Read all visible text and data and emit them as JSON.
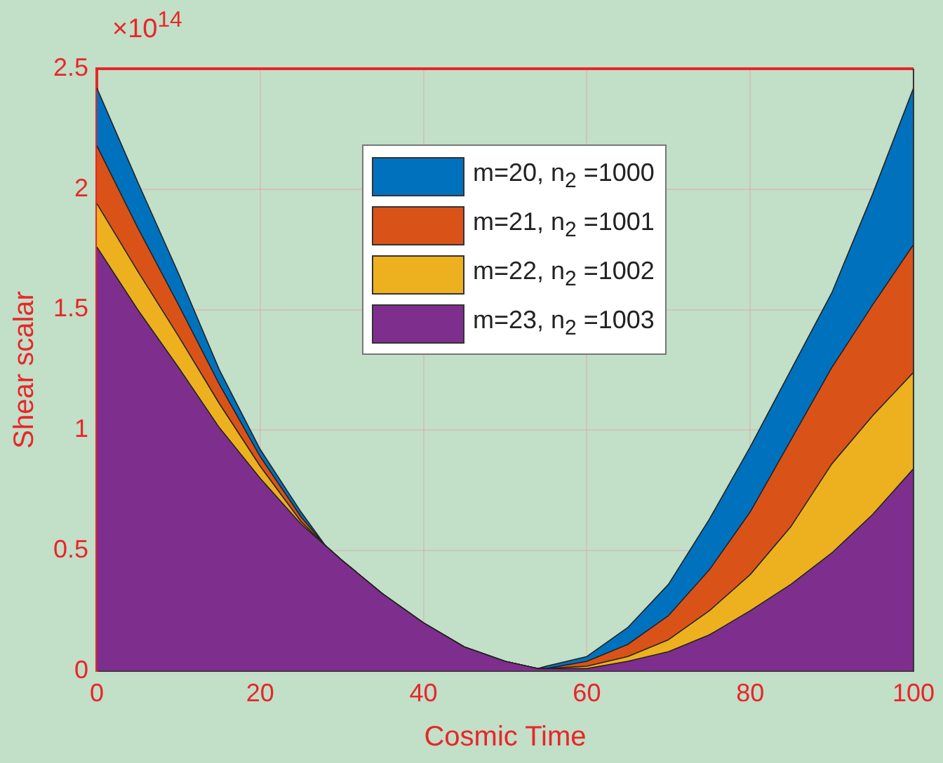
{
  "chart_data": {
    "type": "area",
    "stacked": true,
    "xlabel": "Cosmic Time",
    "ylabel": "Shear scalar",
    "annotations": [
      "×10$^{14}$"
    ],
    "x": [
      0,
      5,
      10,
      15,
      20,
      25,
      28,
      30,
      35,
      40,
      45,
      50,
      54,
      55,
      60,
      65,
      70,
      75,
      80,
      85,
      90,
      95,
      100
    ],
    "series": [
      {
        "name": "m=23, n$_{2}$ =1003",
        "color": "#7e2f8e",
        "values": [
          1.76,
          1.5,
          1.26,
          1.01,
          0.8,
          0.61,
          0.52,
          0.46,
          0.32,
          0.2,
          0.1,
          0.04,
          0.01,
          0.01,
          0.01,
          0.04,
          0.08,
          0.15,
          0.25,
          0.36,
          0.49,
          0.65,
          0.84
        ]
      },
      {
        "name": "m=22, n$_{2}$ =1002",
        "color": "#edb120",
        "values": [
          0.18,
          0.16,
          0.13,
          0.1,
          0.05,
          0.01,
          0,
          0,
          0,
          0,
          0,
          0,
          0,
          0,
          0.01,
          0.02,
          0.05,
          0.1,
          0.15,
          0.24,
          0.37,
          0.41,
          0.4
        ]
      },
      {
        "name": "m=21, n$_{2}$ =1001",
        "color": "#d95319",
        "values": [
          0.24,
          0.18,
          0.13,
          0.08,
          0.04,
          0.02,
          0,
          0,
          0,
          0,
          0,
          0,
          0,
          0,
          0.02,
          0.05,
          0.1,
          0.17,
          0.26,
          0.36,
          0.4,
          0.46,
          0.53
        ]
      },
      {
        "name": "m=20, n$_{2}$ =1000",
        "color": "#0072bd",
        "values": [
          0.24,
          0.19,
          0.13,
          0.06,
          0.03,
          0.02,
          0,
          0,
          0,
          0,
          0,
          0,
          0,
          0.01,
          0.02,
          0.07,
          0.13,
          0.21,
          0.27,
          0.29,
          0.31,
          0.46,
          0.65
        ]
      }
    ],
    "xlim": [
      0,
      100
    ],
    "ylim": [
      0,
      2.5
    ],
    "xticks": [
      0,
      20,
      40,
      60,
      80,
      100
    ],
    "yticks": [
      0,
      0.5,
      1,
      1.5,
      2,
      2.5
    ],
    "grid": true,
    "legend": "top"
  }
}
